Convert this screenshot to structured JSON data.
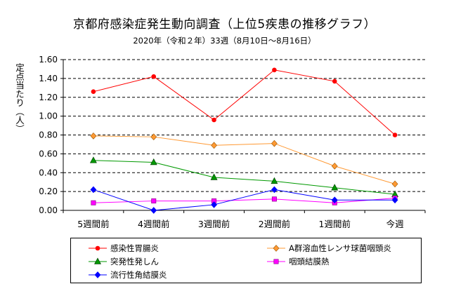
{
  "chart_data": {
    "type": "line",
    "title": "京都府感染症発生動向調査（上位5疾患の推移グラフ）",
    "subtitle": "2020年（令和２年）33週（8月10日～8月16日）",
    "ylabel": "定点当たり（人）",
    "xlabel": "",
    "categories": [
      "5週間前",
      "4週間前",
      "3週間前",
      "2週間前",
      "1週間前",
      "今週"
    ],
    "ylim": [
      0,
      1.6
    ],
    "yticks": [
      "0.00",
      "0.20",
      "0.40",
      "0.60",
      "0.80",
      "1.00",
      "1.20",
      "1.40",
      "1.60"
    ],
    "grid": "horizontal dashed",
    "legend_position": "bottom",
    "series": [
      {
        "name": "感染性胃腸炎",
        "values": [
          1.26,
          1.42,
          0.96,
          1.49,
          1.37,
          0.8
        ],
        "color": "#ff0000",
        "marker": "circle"
      },
      {
        "name": "A群溶血性レンサ球菌咽頭炎",
        "values": [
          0.79,
          0.78,
          0.69,
          0.71,
          0.47,
          0.28
        ],
        "color": "#ff9933",
        "marker": "diamond"
      },
      {
        "name": "突発性発しん",
        "values": [
          0.53,
          0.51,
          0.35,
          0.31,
          0.24,
          0.17
        ],
        "color": "#009900",
        "marker": "triangle"
      },
      {
        "name": "咽頭結膜熱",
        "values": [
          0.08,
          0.1,
          0.1,
          0.12,
          0.08,
          0.13
        ],
        "color": "#ff00ff",
        "marker": "square"
      },
      {
        "name": "流行性角結膜炎",
        "values": [
          0.22,
          0.0,
          0.06,
          0.22,
          0.11,
          0.11
        ],
        "color": "#0000ff",
        "marker": "diamond"
      }
    ]
  }
}
